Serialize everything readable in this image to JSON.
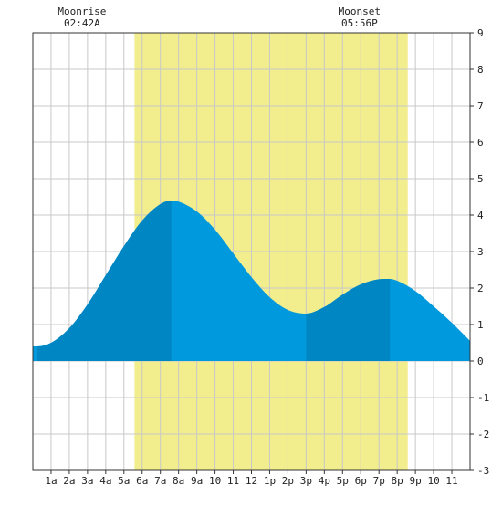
{
  "chart_data": {
    "type": "area",
    "title": "",
    "xlabel": "",
    "ylabel": "",
    "xlim": [
      0,
      24
    ],
    "ylim": [
      -3,
      9
    ],
    "x_ticks": [
      {
        "x": 1,
        "label": "1a"
      },
      {
        "x": 2,
        "label": "2a"
      },
      {
        "x": 3,
        "label": "3a"
      },
      {
        "x": 4,
        "label": "4a"
      },
      {
        "x": 5,
        "label": "5a"
      },
      {
        "x": 6,
        "label": "6a"
      },
      {
        "x": 7,
        "label": "7a"
      },
      {
        "x": 8,
        "label": "8a"
      },
      {
        "x": 9,
        "label": "9a"
      },
      {
        "x": 10,
        "label": "10"
      },
      {
        "x": 11,
        "label": "11"
      },
      {
        "x": 12,
        "label": "12"
      },
      {
        "x": 13,
        "label": "1p"
      },
      {
        "x": 14,
        "label": "2p"
      },
      {
        "x": 15,
        "label": "3p"
      },
      {
        "x": 16,
        "label": "4p"
      },
      {
        "x": 17,
        "label": "5p"
      },
      {
        "x": 18,
        "label": "6p"
      },
      {
        "x": 19,
        "label": "7p"
      },
      {
        "x": 20,
        "label": "8p"
      },
      {
        "x": 21,
        "label": "9p"
      },
      {
        "x": 22,
        "label": "10"
      },
      {
        "x": 23,
        "label": "11"
      }
    ],
    "y_ticks": [
      -3,
      -2,
      -1,
      0,
      1,
      2,
      3,
      4,
      5,
      6,
      7,
      8,
      9
    ],
    "grid": true,
    "daylight": {
      "start": 5.58,
      "end": 20.58,
      "color": "#f2ee8e"
    },
    "moon_events": [
      {
        "label": "Moonrise",
        "time": "02:42A",
        "x": 2.7
      },
      {
        "label": "Moonset",
        "time": "05:56P",
        "x": 17.93
      }
    ],
    "tide_extremes": [
      {
        "type": "low",
        "x": 0.25,
        "y": 0.4
      },
      {
        "type": "high",
        "x": 7.6,
        "y": 4.4
      },
      {
        "type": "low",
        "x": 15.0,
        "y": 1.3
      },
      {
        "type": "high",
        "x": 19.6,
        "y": 2.25
      },
      {
        "type": "low",
        "x": 25.9,
        "y": 0.25
      }
    ],
    "series": [
      {
        "values": [
          [
            0,
            0.4
          ],
          [
            0.25,
            0.4
          ],
          [
            1,
            0.5
          ],
          [
            2,
            0.9
          ],
          [
            3,
            1.55
          ],
          [
            4,
            2.35
          ],
          [
            5,
            3.15
          ],
          [
            6,
            3.85
          ],
          [
            7,
            4.3
          ],
          [
            7.6,
            4.4
          ],
          [
            8,
            4.37
          ],
          [
            9,
            4.1
          ],
          [
            10,
            3.6
          ],
          [
            11,
            2.95
          ],
          [
            12,
            2.3
          ],
          [
            13,
            1.75
          ],
          [
            14,
            1.4
          ],
          [
            15,
            1.3
          ],
          [
            16,
            1.48
          ],
          [
            17,
            1.82
          ],
          [
            18,
            2.1
          ],
          [
            19,
            2.24
          ],
          [
            19.6,
            2.25
          ],
          [
            20,
            2.2
          ],
          [
            21,
            1.92
          ],
          [
            22,
            1.5
          ],
          [
            23,
            1.05
          ],
          [
            24,
            0.55
          ]
        ]
      }
    ],
    "colors": {
      "tide": "#0099dd",
      "tide_dark": "#0086c3",
      "daylight": "#f2ee8e",
      "grid": "#c8c8c8",
      "axis": "#333333",
      "background": "#ffffff"
    }
  }
}
